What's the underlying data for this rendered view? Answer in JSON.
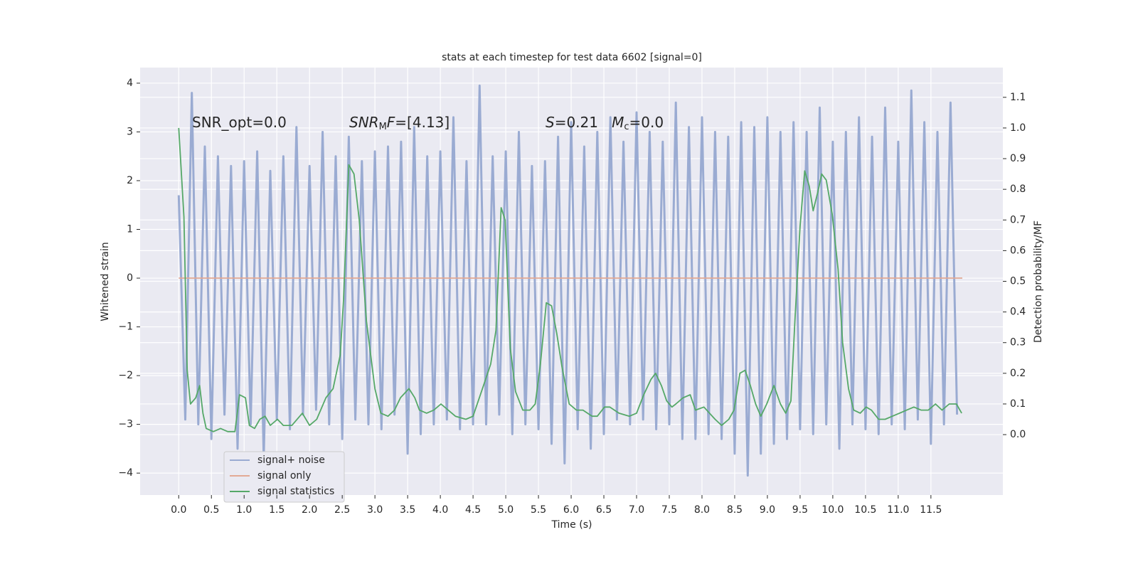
{
  "chart_data": {
    "type": "line",
    "title": "stats at each timestep for test data 6602 [signal=0]",
    "x_label": "Time (s)",
    "y_label": "Whitened strain",
    "y2_label": "Detection probability/MF",
    "xlim": [
      -0.59,
      12.6
    ],
    "ylim": [
      -4.45,
      4.32
    ],
    "y2lim": [
      -0.197,
      1.197
    ],
    "xticks": [
      {
        "value": 0,
        "label": "0.0"
      },
      {
        "value": 0.5,
        "label": "0.5"
      },
      {
        "value": 1,
        "label": "1.0"
      },
      {
        "value": 1.5,
        "label": "1.5"
      },
      {
        "value": 2,
        "label": "2.0"
      },
      {
        "value": 2.5,
        "label": "2.5"
      },
      {
        "value": 3,
        "label": "3.0"
      },
      {
        "value": 3.5,
        "label": "3.5"
      },
      {
        "value": 4,
        "label": "4.0"
      },
      {
        "value": 4.5,
        "label": "4.5"
      },
      {
        "value": 5,
        "label": "5.0"
      },
      {
        "value": 5.5,
        "label": "5.5"
      },
      {
        "value": 6,
        "label": "6.0"
      },
      {
        "value": 6.5,
        "label": "6.5"
      },
      {
        "value": 7,
        "label": "7.0"
      },
      {
        "value": 7.5,
        "label": "7.5"
      },
      {
        "value": 8,
        "label": "8.0"
      },
      {
        "value": 8.5,
        "label": "8.5"
      },
      {
        "value": 9,
        "label": "9.0"
      },
      {
        "value": 9.5,
        "label": "9.5"
      },
      {
        "value": 10,
        "label": "10.0"
      },
      {
        "value": 10.5,
        "label": "10.5"
      },
      {
        "value": 11,
        "label": "11.0"
      },
      {
        "value": 11.5,
        "label": "11.5"
      }
    ],
    "yticks": [
      {
        "value": -4,
        "label": "−4"
      },
      {
        "value": -3,
        "label": "−3"
      },
      {
        "value": -2,
        "label": "−2"
      },
      {
        "value": -1,
        "label": "−1"
      },
      0,
      1,
      2,
      3,
      4
    ],
    "y2ticks": [
      {
        "value": 0,
        "label": "0.0"
      },
      {
        "value": 0.1,
        "label": "0.1"
      },
      {
        "value": 0.2,
        "label": "0.2"
      },
      {
        "value": 0.3,
        "label": "0.3"
      },
      {
        "value": 0.4,
        "label": "0.4"
      },
      {
        "value": 0.5,
        "label": "0.5"
      },
      {
        "value": 0.6,
        "label": "0.6"
      },
      {
        "value": 0.7,
        "label": "0.7"
      },
      {
        "value": 0.8,
        "label": "0.8"
      },
      {
        "value": 0.9,
        "label": "0.9"
      },
      {
        "value": 1,
        "label": "1.0"
      },
      {
        "value": 1.1,
        "label": "1.1"
      }
    ],
    "grid": true,
    "legend_position": "lower left",
    "annotations": [
      [
        {
          "text": "SNR_opt=0.0",
          "style": "normal"
        }
      ],
      [
        {
          "text": "SNR",
          "style": "italic"
        },
        {
          "text": "M",
          "style": "sub"
        },
        {
          "text": "F",
          "style": "italic"
        },
        {
          "text": "=[4.13]",
          "style": "normal"
        }
      ],
      [
        {
          "text": "S",
          "style": "italic"
        },
        {
          "text": "=0.21   ",
          "style": "normal"
        },
        {
          "text": "M",
          "style": "italic"
        },
        {
          "text": "c",
          "style": "sub"
        },
        {
          "text": "=0.0",
          "style": "normal"
        }
      ]
    ],
    "series": [
      {
        "name": "signal+ noise",
        "color": "#9aabd2",
        "axis": "y",
        "x": [
          0,
          0.1,
          0.2,
          0.3,
          0.4,
          0.5,
          0.6,
          0.7,
          0.8,
          0.9,
          1,
          1.1,
          1.2,
          1.3,
          1.4,
          1.5,
          1.6,
          1.7,
          1.8,
          1.9,
          2,
          2.1,
          2.2,
          2.3,
          2.4,
          2.5,
          2.6,
          2.7,
          2.8,
          2.9,
          3,
          3.1,
          3.2,
          3.3,
          3.4,
          3.5,
          3.6,
          3.7,
          3.8,
          3.9,
          4,
          4.1,
          4.2,
          4.3,
          4.4,
          4.5,
          4.6,
          4.7,
          4.8,
          4.9,
          5,
          5.1,
          5.2,
          5.3,
          5.4,
          5.5,
          5.6,
          5.7,
          5.8,
          5.9,
          6,
          6.1,
          6.2,
          6.3,
          6.4,
          6.5,
          6.6,
          6.7,
          6.8,
          6.9,
          7,
          7.1,
          7.2,
          7.3,
          7.4,
          7.5,
          7.6,
          7.7,
          7.8,
          7.9,
          8,
          8.1,
          8.2,
          8.3,
          8.4,
          8.5,
          8.6,
          8.7,
          8.8,
          8.9,
          9,
          9.1,
          9.2,
          9.3,
          9.4,
          9.5,
          9.6,
          9.7,
          9.8,
          9.9,
          10,
          10.1,
          10.2,
          10.3,
          10.4,
          10.5,
          10.6,
          10.7,
          10.8,
          10.9,
          11,
          11.1,
          11.2,
          11.3,
          11.4,
          11.5,
          11.6,
          11.7,
          11.8,
          11.9
        ],
        "values": [
          1.7,
          -2.9,
          3.8,
          -3.0,
          2.7,
          -3.3,
          2.5,
          -2.8,
          2.3,
          -3.5,
          2.4,
          -3.0,
          2.6,
          -3.7,
          2.2,
          -2.9,
          2.5,
          -3.1,
          3.1,
          -2.8,
          2.3,
          -2.7,
          3.0,
          -3.0,
          2.5,
          -3.3,
          2.9,
          -2.9,
          2.4,
          -3.0,
          2.6,
          -3.1,
          2.7,
          -2.8,
          2.8,
          -3.6,
          3.1,
          -3.2,
          2.5,
          -3.0,
          2.6,
          -2.9,
          3.3,
          -3.1,
          2.4,
          -3.0,
          3.95,
          -3.0,
          2.5,
          -2.8,
          2.6,
          -3.2,
          3.0,
          -3.0,
          2.3,
          -3.1,
          2.4,
          -3.4,
          2.9,
          -3.8,
          3.2,
          -3.1,
          2.7,
          -3.5,
          3.0,
          -3.2,
          3.3,
          -2.9,
          2.8,
          -3.0,
          3.4,
          -2.9,
          3.0,
          -3.1,
          2.8,
          -3.0,
          3.6,
          -3.3,
          3.1,
          -3.3,
          3.3,
          -3.2,
          3.0,
          -3.3,
          2.9,
          -3.6,
          3.2,
          -4.05,
          3.1,
          -3.6,
          3.3,
          -3.4,
          3.0,
          -3.3,
          3.2,
          -3.1,
          3.0,
          -3.2,
          3.5,
          -3.0,
          2.8,
          -3.5,
          3.0,
          -3.0,
          3.3,
          -3.1,
          2.9,
          -3.2,
          3.5,
          -3.0,
          2.8,
          -3.1,
          3.85,
          -2.9,
          3.2,
          -3.4,
          3.0,
          -3.0,
          3.6,
          -2.8
        ]
      },
      {
        "name": "signal only",
        "color": "#e3a994",
        "axis": "y",
        "x": [
          0,
          11.98
        ],
        "values": [
          0,
          0
        ]
      },
      {
        "name": "signal statistics",
        "color": "#55a868",
        "axis": "y2",
        "x": [
          0,
          0.08,
          0.13,
          0.18,
          0.26,
          0.32,
          0.37,
          0.42,
          0.53,
          0.64,
          0.75,
          0.86,
          0.93,
          1.02,
          1.08,
          1.16,
          1.24,
          1.32,
          1.4,
          1.51,
          1.6,
          1.73,
          1.89,
          2,
          2.11,
          2.25,
          2.36,
          2.47,
          2.52,
          2.6,
          2.68,
          2.76,
          2.87,
          3,
          3.09,
          3.2,
          3.3,
          3.39,
          3.52,
          3.61,
          3.68,
          3.79,
          3.9,
          4.01,
          4.12,
          4.23,
          4.39,
          4.5,
          4.66,
          4.77,
          4.85,
          4.93,
          4.99,
          5.07,
          5.15,
          5.26,
          5.37,
          5.45,
          5.53,
          5.62,
          5.7,
          5.78,
          5.86,
          5.97,
          6.08,
          6.18,
          6.32,
          6.4,
          6.51,
          6.59,
          6.73,
          6.89,
          7,
          7.11,
          7.22,
          7.29,
          7.38,
          7.46,
          7.54,
          7.6,
          7.71,
          7.82,
          7.9,
          8.03,
          8.2,
          8.3,
          8.41,
          8.49,
          8.58,
          8.66,
          8.74,
          8.82,
          8.9,
          8.99,
          9.1,
          9.2,
          9.28,
          9.36,
          9.42,
          9.5,
          9.57,
          9.64,
          9.7,
          9.77,
          9.83,
          9.9,
          9.99,
          10.08,
          10.15,
          10.24,
          10.32,
          10.42,
          10.51,
          10.59,
          10.7,
          10.8,
          10.91,
          11.02,
          11.13,
          11.24,
          11.35,
          11.46,
          11.57,
          11.67,
          11.78,
          11.89,
          11.97
        ],
        "values": [
          1.0,
          0.71,
          0.21,
          0.1,
          0.12,
          0.16,
          0.07,
          0.02,
          0.01,
          0.02,
          0.01,
          0.01,
          0.13,
          0.12,
          0.03,
          0.02,
          0.05,
          0.06,
          0.03,
          0.05,
          0.03,
          0.03,
          0.07,
          0.03,
          0.05,
          0.12,
          0.15,
          0.26,
          0.44,
          0.88,
          0.85,
          0.7,
          0.37,
          0.15,
          0.07,
          0.06,
          0.08,
          0.12,
          0.15,
          0.12,
          0.08,
          0.07,
          0.08,
          0.1,
          0.08,
          0.06,
          0.05,
          0.06,
          0.16,
          0.23,
          0.34,
          0.74,
          0.7,
          0.28,
          0.14,
          0.08,
          0.08,
          0.1,
          0.23,
          0.43,
          0.42,
          0.33,
          0.22,
          0.1,
          0.08,
          0.08,
          0.06,
          0.06,
          0.09,
          0.09,
          0.07,
          0.06,
          0.07,
          0.13,
          0.18,
          0.2,
          0.16,
          0.11,
          0.09,
          0.1,
          0.12,
          0.13,
          0.08,
          0.09,
          0.05,
          0.03,
          0.05,
          0.08,
          0.2,
          0.21,
          0.16,
          0.1,
          0.06,
          0.1,
          0.16,
          0.1,
          0.07,
          0.11,
          0.37,
          0.68,
          0.86,
          0.81,
          0.73,
          0.79,
          0.85,
          0.83,
          0.72,
          0.54,
          0.3,
          0.15,
          0.08,
          0.07,
          0.09,
          0.08,
          0.05,
          0.05,
          0.06,
          0.07,
          0.08,
          0.09,
          0.08,
          0.08,
          0.1,
          0.08,
          0.1,
          0.1,
          0.07
        ]
      }
    ]
  }
}
